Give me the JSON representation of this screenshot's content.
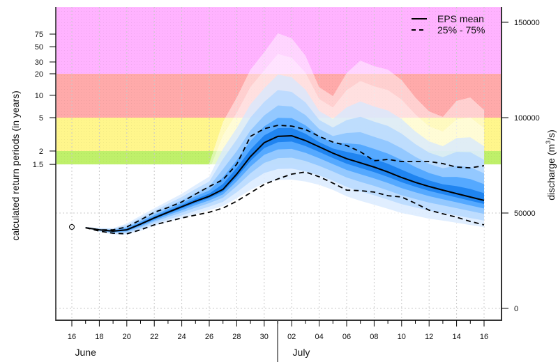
{
  "chart_data": {
    "type": "area",
    "title": "",
    "left_ylabel": "calculated return periods (in years)",
    "right_ylabel_main": "discharge (m",
    "right_ylabel_sup": "3",
    "right_ylabel_end": "/s)",
    "xlabel_months": [
      {
        "label": "June",
        "center_day": 1
      },
      {
        "label": "July",
        "center_day": 16.7
      }
    ],
    "month_separator_day": 15,
    "x_start_date": "June 16",
    "x_range_days": [
      -1.2,
      31.3
    ],
    "x_ticks": [
      {
        "day": 0,
        "label": "16"
      },
      {
        "day": 2,
        "label": "18"
      },
      {
        "day": 4,
        "label": "20"
      },
      {
        "day": 6,
        "label": "22"
      },
      {
        "day": 8,
        "label": "24"
      },
      {
        "day": 10,
        "label": "26"
      },
      {
        "day": 12,
        "label": "28"
      },
      {
        "day": 14,
        "label": "30"
      },
      {
        "day": 16,
        "label": "02"
      },
      {
        "day": 18,
        "label": "04"
      },
      {
        "day": 20,
        "label": "06"
      },
      {
        "day": 22,
        "label": "08"
      },
      {
        "day": 24,
        "label": "10"
      },
      {
        "day": 26,
        "label": "12"
      },
      {
        "day": 28,
        "label": "14"
      },
      {
        "day": 30,
        "label": "16"
      }
    ],
    "discharge_range": [
      -6200,
      158000
    ],
    "right_ticks": [
      {
        "value": 0,
        "label": "0"
      },
      {
        "value": 50000,
        "label": "50000"
      },
      {
        "value": 100000,
        "label": "100000"
      },
      {
        "value": 150000,
        "label": "150000"
      }
    ],
    "return_period_ticks": [
      {
        "label": "1.5",
        "discharge": 75500
      },
      {
        "label": "2",
        "discharge": 82500
      },
      {
        "label": "5",
        "discharge": 100000
      },
      {
        "label": "10",
        "discharge": 111700
      },
      {
        "label": "20",
        "discharge": 123000
      },
      {
        "label": "30",
        "discharge": 129200
      },
      {
        "label": "50",
        "discharge": 137200
      },
      {
        "label": "75",
        "discharge": 143800
      }
    ],
    "threshold_bands": [
      {
        "name": "1.5-2 years",
        "from": 75500,
        "to": 82500,
        "color": "#bff06a"
      },
      {
        "name": "2-5 years",
        "from": 82500,
        "to": 100000,
        "color": "#fff68c"
      },
      {
        "name": "5-20 years",
        "from": 100000,
        "to": 123000,
        "color": "#ffaaaa"
      },
      {
        "name": ">20 years",
        "from": 123000,
        "to": 158000,
        "color": "#ffb3ff"
      }
    ],
    "days": [
      1,
      2,
      3,
      4,
      5,
      6,
      7,
      8,
      9,
      10,
      11,
      12,
      13,
      14,
      15,
      16,
      17,
      18,
      19,
      20,
      21,
      22,
      23,
      24,
      25,
      26,
      27,
      28,
      29,
      30
    ],
    "series": [
      {
        "name": "EPS mean",
        "style": "solid",
        "values": [
          42300,
          41200,
          40500,
          41200,
          44200,
          47400,
          50400,
          53300,
          56200,
          58800,
          62400,
          70400,
          79600,
          86900,
          90200,
          90500,
          88000,
          84700,
          81400,
          78500,
          76300,
          74100,
          71500,
          68600,
          66100,
          63900,
          62000,
          60200,
          58400,
          56600
        ]
      },
      {
        "name": "75%",
        "style": "dashed",
        "values": [
          42300,
          41200,
          41200,
          42700,
          46400,
          50400,
          52900,
          55800,
          59900,
          63900,
          67500,
          75600,
          90200,
          94200,
          96000,
          95600,
          93800,
          90200,
          87200,
          85400,
          82100,
          77400,
          78100,
          77000,
          77000,
          77000,
          75900,
          74100,
          73700,
          74800
        ]
      },
      {
        "name": "25%",
        "style": "dashed",
        "values": [
          42300,
          40500,
          39400,
          39100,
          41200,
          43800,
          45600,
          47400,
          48900,
          50400,
          52600,
          56200,
          60600,
          65000,
          67900,
          70400,
          71500,
          69000,
          65700,
          62000,
          61700,
          61000,
          59100,
          58400,
          55100,
          51500,
          49600,
          47800,
          45600,
          43800
        ]
      },
      {
        "name": "ensemble max",
        "style": "envelope",
        "values": [
          43100,
          42700,
          43100,
          46700,
          51500,
          55800,
          60200,
          64600,
          70400,
          75900,
          97800,
          110600,
          125200,
          134300,
          144200,
          141600,
          132500,
          116000,
          111300,
          123400,
          129900,
          127000,
          125200,
          119700,
          110600,
          103300,
          100400,
          108800,
          110600,
          104000
        ]
      },
      {
        "name": "ensemble min",
        "style": "envelope",
        "values": [
          42000,
          39400,
          37600,
          36900,
          38300,
          40500,
          42000,
          43100,
          44900,
          46700,
          47800,
          49300,
          50400,
          51500,
          52200,
          52200,
          52200,
          51500,
          49300,
          45600,
          43100,
          41200,
          39400,
          37600,
          36900,
          35800,
          35400,
          34700,
          33900,
          33200
        ]
      }
    ],
    "observation": {
      "day": 0,
      "value": 42700,
      "marker": "open-circle"
    },
    "legend": {
      "placement": "top-right",
      "entries": [
        {
          "label": "EPS mean",
          "style": "solid"
        },
        {
          "label": "25% - 75%",
          "style": "dashed"
        }
      ]
    },
    "colors": {
      "spread_light": "#d6e8ff",
      "spread_mid": "#8cc4ff",
      "spread_dark": "#1a7fee",
      "line": "#000000",
      "grid": "#c8c8c8"
    },
    "grid": true
  }
}
